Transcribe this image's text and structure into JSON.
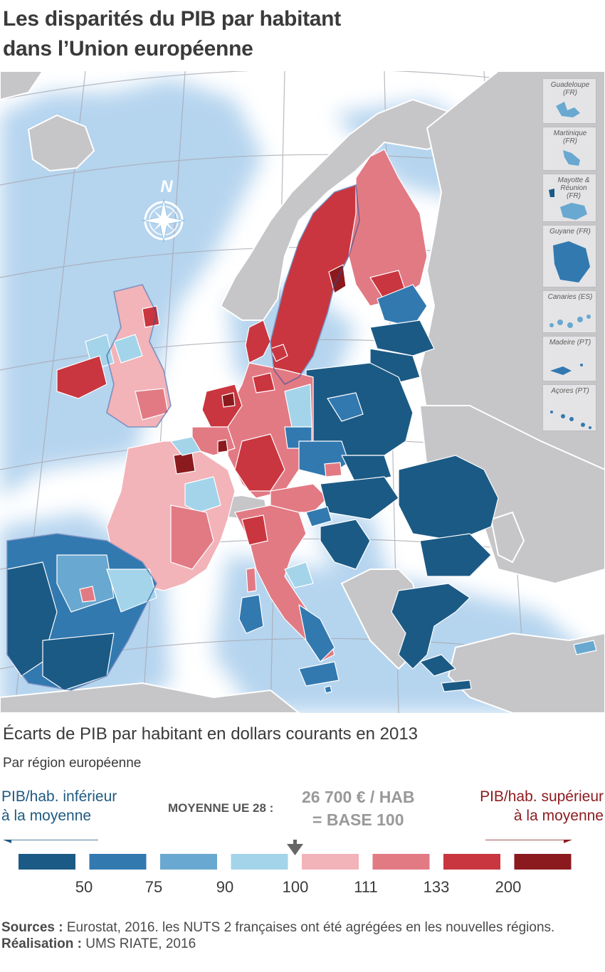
{
  "title": {
    "line1": "Les disparités du PIB par habitant",
    "line2": "dans l’Union européenne"
  },
  "map": {
    "compass_letter": "N",
    "colors": {
      "sea": "#ffffff",
      "sea_glow": "#a9cdec",
      "non_eu": "#c6c6c9",
      "border": "#2c4f9a",
      "c1": "#1b5a85",
      "c2": "#3279b0",
      "c3": "#69a8d0",
      "c4": "#a3d4ea",
      "c5": "#f2b3b9",
      "c6": "#e27a84",
      "c7": "#c9363f",
      "c8": "#8b1a1f"
    },
    "insets": [
      {
        "label": "Guadeloupe (FR)",
        "class": "c3"
      },
      {
        "label": "Martinique (FR)",
        "class": "c3"
      },
      {
        "label": "Mayotte & Réunion (FR)",
        "class": "c3"
      },
      {
        "label": "Guyane (FR)",
        "class": "c2"
      },
      {
        "label": "Canaries (ES)",
        "class": "c3"
      },
      {
        "label": "Madeire (PT)",
        "class": "c2"
      },
      {
        "label": "Açores (PT)",
        "class": "c2"
      }
    ]
  },
  "legend": {
    "subtitle": "Écarts de PIB par habitant en dollars courants en 2013",
    "subsubtitle": "Par région européenne",
    "lower_line1": "PIB/hab. inférieur",
    "lower_line2": "à la moyenne",
    "upper_line1": "PIB/hab. supérieur",
    "upper_line2": "à la moyenne",
    "average_label": "MOYENNE UE 28 :",
    "average_value_line1": "26 700 € / HAB",
    "average_value_line2": "= BASE 100",
    "thresholds": [
      "50",
      "75",
      "90",
      "100",
      "111",
      "133",
      "200"
    ],
    "classes": [
      {
        "color": "#1b5a85"
      },
      {
        "color": "#3279b0"
      },
      {
        "color": "#69a8d0"
      },
      {
        "color": "#a3d4ea"
      },
      {
        "color": "#f2b3b9"
      },
      {
        "color": "#e27a84"
      },
      {
        "color": "#c9363f"
      },
      {
        "color": "#8b1a1f"
      }
    ]
  },
  "sources": {
    "label": "Sources :",
    "text": " Eurostat, 2016. les NUTS 2 françaises ont été agrégées en les nouvelles régions.",
    "credit_label": "Réalisation :",
    "credit_text": " UMS RIATE, 2016"
  }
}
